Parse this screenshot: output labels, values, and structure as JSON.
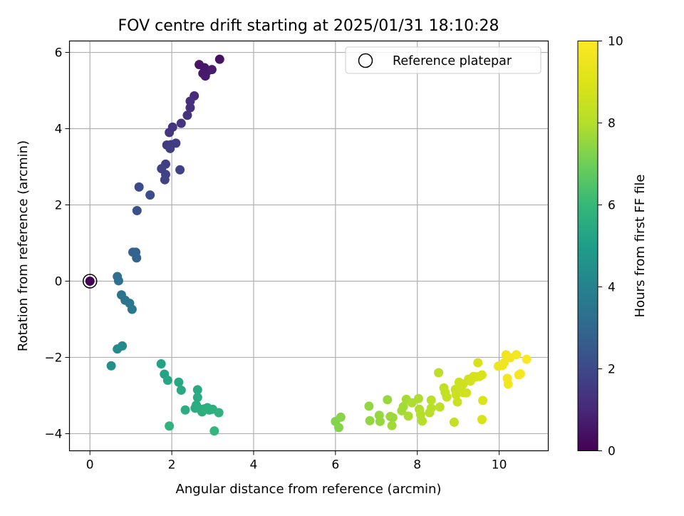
{
  "chart_data": {
    "type": "scatter",
    "title": "FOV centre drift starting at 2025/01/31 18:10:28",
    "xlabel": "Angular distance from reference (arcmin)",
    "ylabel": "Rotation from reference (arcmin)",
    "xlim": [
      -0.5,
      11.2
    ],
    "ylim": [
      -4.45,
      6.3
    ],
    "xticks": [
      0,
      2,
      4,
      6,
      8,
      10
    ],
    "yticks": [
      -4,
      -2,
      0,
      2,
      4,
      6
    ],
    "grid": true,
    "legend": {
      "placement": "top-right",
      "entries": [
        "Reference platepar"
      ]
    },
    "colorbar": {
      "label": "Hours from first FF file",
      "colormap": "viridis",
      "min": 0,
      "max": 10,
      "ticks": [
        0,
        2,
        4,
        6,
        8,
        10
      ]
    },
    "reference_point": {
      "x": 0,
      "y": 0,
      "hours": 0
    },
    "points": [
      [
        2.67,
        5.68,
        0.5
      ],
      [
        2.8,
        5.6,
        0.55
      ],
      [
        2.86,
        5.5,
        0.6
      ],
      [
        2.76,
        5.45,
        0.6
      ],
      [
        2.82,
        5.38,
        0.65
      ],
      [
        2.98,
        5.55,
        0.7
      ],
      [
        3.17,
        5.82,
        0.45
      ],
      [
        2.55,
        4.86,
        1.1
      ],
      [
        2.45,
        4.72,
        1.2
      ],
      [
        2.45,
        4.55,
        1.25
      ],
      [
        2.38,
        4.35,
        1.3
      ],
      [
        2.23,
        4.14,
        1.35
      ],
      [
        2.02,
        4.04,
        1.4
      ],
      [
        1.94,
        3.9,
        1.45
      ],
      [
        1.88,
        3.57,
        1.5
      ],
      [
        1.98,
        3.58,
        1.55
      ],
      [
        2.1,
        3.62,
        1.6
      ],
      [
        1.96,
        3.48,
        1.6
      ],
      [
        1.85,
        3.07,
        1.7
      ],
      [
        1.75,
        2.95,
        1.75
      ],
      [
        1.85,
        2.8,
        1.8
      ],
      [
        2.2,
        2.92,
        1.8
      ],
      [
        1.83,
        2.66,
        1.85
      ],
      [
        1.2,
        2.47,
        2.0
      ],
      [
        1.47,
        2.26,
        2.1
      ],
      [
        1.15,
        1.85,
        2.3
      ],
      [
        1.05,
        0.76,
        2.8
      ],
      [
        1.12,
        0.76,
        2.85
      ],
      [
        1.14,
        0.61,
        2.9
      ],
      [
        0.67,
        0.12,
        3.3
      ],
      [
        0.7,
        0.01,
        3.35
      ],
      [
        0.77,
        -0.36,
        3.45
      ],
      [
        0.86,
        -0.5,
        3.5
      ],
      [
        0.97,
        -0.58,
        3.55
      ],
      [
        1.03,
        -0.74,
        3.6
      ],
      [
        0.79,
        -1.7,
        4.3
      ],
      [
        0.67,
        -1.78,
        4.35
      ],
      [
        0.52,
        -2.22,
        4.5
      ],
      [
        1.74,
        -2.17,
        5.2
      ],
      [
        1.82,
        -2.44,
        5.25
      ],
      [
        1.9,
        -2.6,
        5.3
      ],
      [
        2.17,
        -2.65,
        5.35
      ],
      [
        2.23,
        -2.86,
        5.4
      ],
      [
        2.63,
        -2.85,
        5.45
      ],
      [
        2.63,
        -3.05,
        5.5
      ],
      [
        2.6,
        -3.25,
        5.55
      ],
      [
        2.57,
        -3.33,
        5.55
      ],
      [
        2.7,
        -3.36,
        5.6
      ],
      [
        2.74,
        -3.43,
        5.6
      ],
      [
        2.8,
        -3.35,
        5.65
      ],
      [
        2.92,
        -3.38,
        5.65
      ],
      [
        3.0,
        -3.36,
        5.7
      ],
      [
        2.87,
        -3.32,
        5.7
      ],
      [
        3.15,
        -3.45,
        5.75
      ],
      [
        2.33,
        -3.38,
        5.6
      ],
      [
        1.94,
        -3.8,
        5.8
      ],
      [
        3.04,
        -3.93,
        5.9
      ],
      [
        6.0,
        -3.68,
        7.3
      ],
      [
        6.08,
        -3.84,
        7.3
      ],
      [
        6.13,
        -3.57,
        7.35
      ],
      [
        6.82,
        -3.28,
        7.5
      ],
      [
        6.84,
        -3.66,
        7.5
      ],
      [
        7.07,
        -3.52,
        7.55
      ],
      [
        7.09,
        -3.68,
        7.55
      ],
      [
        7.27,
        -3.11,
        7.6
      ],
      [
        7.34,
        -3.55,
        7.65
      ],
      [
        7.4,
        -3.58,
        7.65
      ],
      [
        7.38,
        -3.79,
        7.7
      ],
      [
        7.62,
        -3.4,
        7.75
      ],
      [
        7.66,
        -3.29,
        7.75
      ],
      [
        7.73,
        -3.1,
        7.8
      ],
      [
        7.78,
        -3.54,
        7.85
      ],
      [
        7.87,
        -3.19,
        7.9
      ],
      [
        8.03,
        -3.08,
        7.9
      ],
      [
        8.05,
        -3.36,
        7.95
      ],
      [
        8.08,
        -3.5,
        8.0
      ],
      [
        8.12,
        -3.67,
        8.0
      ],
      [
        8.3,
        -3.45,
        8.05
      ],
      [
        8.34,
        -3.33,
        8.1
      ],
      [
        8.34,
        -3.12,
        8.15
      ],
      [
        8.52,
        -2.4,
        8.2
      ],
      [
        8.55,
        -3.3,
        8.2
      ],
      [
        8.65,
        -2.8,
        8.3
      ],
      [
        8.68,
        -2.92,
        8.35
      ],
      [
        8.72,
        -3.04,
        8.35
      ],
      [
        8.9,
        -3.7,
        8.4
      ],
      [
        8.93,
        -2.84,
        8.45
      ],
      [
        8.95,
        -2.98,
        8.5
      ],
      [
        8.98,
        -3.17,
        8.5
      ],
      [
        9.02,
        -2.65,
        8.55
      ],
      [
        9.05,
        -2.82,
        8.6
      ],
      [
        9.12,
        -2.7,
        8.6
      ],
      [
        9.12,
        -2.92,
        8.65
      ],
      [
        9.2,
        -2.93,
        8.65
      ],
      [
        9.25,
        -2.57,
        8.7
      ],
      [
        9.3,
        -2.62,
        8.7
      ],
      [
        9.37,
        -2.5,
        8.75
      ],
      [
        9.43,
        -2.51,
        8.8
      ],
      [
        9.48,
        -2.14,
        8.8
      ],
      [
        9.52,
        -2.5,
        8.85
      ],
      [
        9.58,
        -2.46,
        8.9
      ],
      [
        9.58,
        -3.63,
        8.9
      ],
      [
        9.6,
        -3.13,
        8.95
      ],
      [
        9.98,
        -2.23,
        9.5
      ],
      [
        10.08,
        -2.21,
        9.55
      ],
      [
        10.12,
        -2.14,
        9.6
      ],
      [
        10.17,
        -1.93,
        9.6
      ],
      [
        10.2,
        -2.55,
        9.65
      ],
      [
        10.22,
        -2.7,
        9.65
      ],
      [
        10.27,
        -2.01,
        9.7
      ],
      [
        10.42,
        -1.93,
        9.75
      ],
      [
        10.48,
        -2.46,
        9.8
      ],
      [
        10.52,
        -2.43,
        9.85
      ],
      [
        10.67,
        -2.05,
        9.9
      ]
    ]
  }
}
